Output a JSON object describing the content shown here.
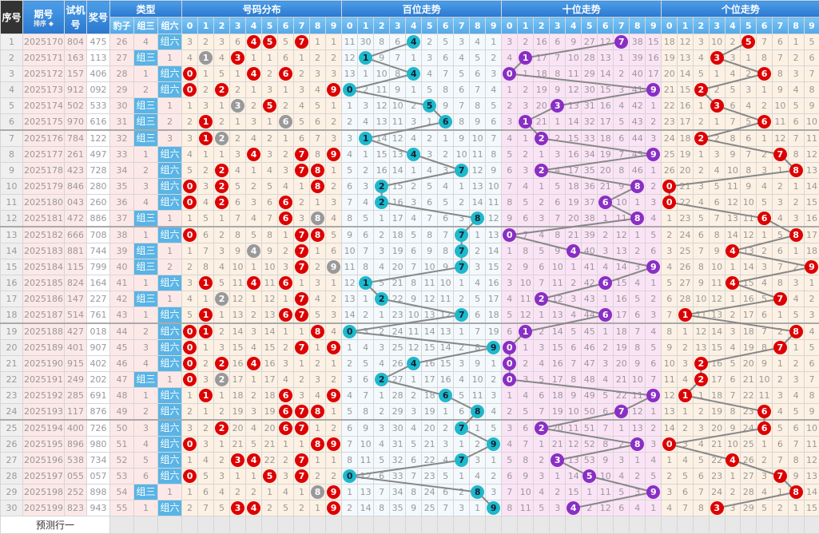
{
  "header": {
    "no": "序号",
    "issue": "期号",
    "sort": "排序",
    "test": "试机号",
    "prize": "奖号",
    "type": "类型",
    "dist": "号码分布",
    "hundreds": "百位走势",
    "tens": "十位走势",
    "units": "个位走势",
    "baozi": "豹子",
    "zu3": "组三",
    "zu6": "组六",
    "digits": [
      "0",
      "1",
      "2",
      "3",
      "4",
      "5",
      "6",
      "7",
      "8",
      "9"
    ]
  },
  "rows": [
    {
      "no": "1",
      "issue": "2025170",
      "test": "804",
      "prize": "475"
    },
    {
      "no": "2",
      "issue": "2025171",
      "test": "163",
      "prize": "113"
    },
    {
      "no": "3",
      "issue": "2025172",
      "test": "157",
      "prize": "406"
    },
    {
      "no": "4",
      "issue": "2025173",
      "test": "912",
      "prize": "092"
    },
    {
      "no": "5",
      "issue": "2025174",
      "test": "502",
      "prize": "533"
    },
    {
      "no": "6",
      "issue": "2025175",
      "test": "970",
      "prize": "616"
    },
    {
      "no": "7",
      "issue": "2025176",
      "test": "784",
      "prize": "122"
    },
    {
      "no": "8",
      "issue": "2025177",
      "test": "261",
      "prize": "497"
    },
    {
      "no": "9",
      "issue": "2025178",
      "test": "423",
      "prize": "728"
    },
    {
      "no": "10",
      "issue": "2025179",
      "test": "846",
      "prize": "280"
    },
    {
      "no": "11",
      "issue": "2025180",
      "test": "043",
      "prize": "260"
    },
    {
      "no": "12",
      "issue": "2025181",
      "test": "472",
      "prize": "886"
    },
    {
      "no": "13",
      "issue": "2025182",
      "test": "666",
      "prize": "708"
    },
    {
      "no": "14",
      "issue": "2025183",
      "test": "881",
      "prize": "744"
    },
    {
      "no": "15",
      "issue": "2025184",
      "test": "115",
      "prize": "799"
    },
    {
      "no": "16",
      "issue": "2025185",
      "test": "824",
      "prize": "164"
    },
    {
      "no": "17",
      "issue": "2025186",
      "test": "147",
      "prize": "227"
    },
    {
      "no": "18",
      "issue": "2025187",
      "test": "514",
      "prize": "761"
    },
    {
      "no": "19",
      "issue": "2025188",
      "test": "427",
      "prize": "018"
    },
    {
      "no": "20",
      "issue": "2025189",
      "test": "401",
      "prize": "907"
    },
    {
      "no": "21",
      "issue": "2025190",
      "test": "915",
      "prize": "402"
    },
    {
      "no": "22",
      "issue": "2025191",
      "test": "249",
      "prize": "202"
    },
    {
      "no": "23",
      "issue": "2025192",
      "test": "285",
      "prize": "691"
    },
    {
      "no": "24",
      "issue": "2025193",
      "test": "117",
      "prize": "876"
    },
    {
      "no": "25",
      "issue": "2025194",
      "test": "400",
      "prize": "726"
    },
    {
      "no": "26",
      "issue": "2025195",
      "test": "896",
      "prize": "980"
    },
    {
      "no": "27",
      "issue": "2025196",
      "test": "538",
      "prize": "734"
    },
    {
      "no": "28",
      "issue": "2025197",
      "test": "055",
      "prize": "057"
    },
    {
      "no": "29",
      "issue": "2025198",
      "test": "252",
      "prize": "898"
    },
    {
      "no": "30",
      "issue": "2025199",
      "test": "823",
      "prize": "943"
    }
  ],
  "first_row_omissions": {
    "baozi": 26,
    "zu3": 4,
    "zu6": 0,
    "dist": [
      3,
      2,
      3,
      6,
      0,
      0,
      5,
      0,
      1,
      1
    ],
    "hundreds": [
      11,
      30,
      8,
      6,
      0,
      2,
      5,
      3,
      4,
      1
    ],
    "tens": [
      3,
      2,
      16,
      6,
      9,
      27,
      12,
      0,
      38,
      15
    ],
    "units": [
      18,
      12,
      3,
      10,
      2,
      0,
      7,
      6,
      1,
      5
    ]
  },
  "prediction_label": "预测行一",
  "colors": {
    "header": "#2a78d0",
    "sub_header": "#52a8e8",
    "dist_ball": "#dd0000",
    "repeat_ball": "#999999",
    "hundreds_ball": "#1fb8cc",
    "tens_ball": "#8a2ec4",
    "units_ball": "#dd0000",
    "badge": "#5ab4e5",
    "line": "#888888"
  }
}
